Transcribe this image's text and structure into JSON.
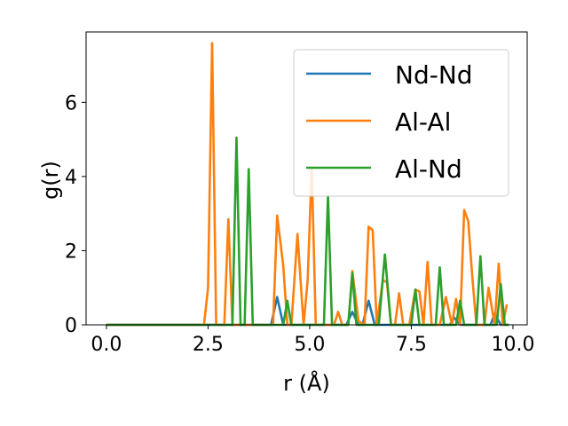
{
  "chart_data": {
    "type": "line",
    "xlabel": "r (Å)",
    "ylabel": "g(r)",
    "xlim": [
      -0.5,
      10.35
    ],
    "ylim": [
      0,
      7.9
    ],
    "xticks": [
      0.0,
      2.5,
      5.0,
      7.5,
      10.0
    ],
    "xtick_labels": [
      "0.0",
      "2.5",
      "5.0",
      "7.5",
      "10.0"
    ],
    "yticks": [
      0,
      2,
      4,
      6
    ],
    "ytick_labels": [
      "0",
      "2",
      "4",
      "6"
    ],
    "grid": false,
    "legend_position": "top-right",
    "series": [
      {
        "name": "Nd-Nd",
        "color": "#1f77b4",
        "x": [
          0.0,
          4.05,
          4.2,
          4.35,
          5.9,
          6.05,
          6.2,
          6.3,
          6.45,
          6.6,
          8.45,
          8.55,
          8.7,
          9.45,
          9.55,
          9.7,
          9.9
        ],
        "y": [
          0.0,
          0.0,
          0.75,
          0.0,
          0.0,
          0.35,
          0.0,
          0.0,
          0.65,
          0.0,
          0.0,
          0.2,
          0.0,
          0.0,
          0.3,
          0.0,
          0.0
        ]
      },
      {
        "name": "Al-Al",
        "color": "#ff7f0e",
        "x": [
          0.0,
          2.4,
          2.5,
          2.6,
          2.7,
          2.9,
          3.0,
          3.1,
          4.1,
          4.2,
          4.35,
          4.45,
          4.55,
          4.7,
          4.85,
          4.95,
          5.05,
          5.15,
          5.5,
          5.6,
          5.7,
          5.8,
          5.95,
          6.05,
          6.2,
          6.35,
          6.45,
          6.55,
          6.65,
          6.8,
          6.9,
          7.0,
          7.1,
          7.2,
          7.3,
          7.45,
          7.6,
          7.7,
          7.8,
          7.9,
          8.0,
          8.2,
          8.35,
          8.5,
          8.6,
          8.7,
          8.8,
          8.9,
          9.0,
          9.1,
          9.2,
          9.3,
          9.4,
          9.55,
          9.65,
          9.75,
          9.85
        ],
        "y": [
          0.0,
          0.0,
          1.0,
          7.6,
          0.0,
          0.0,
          2.85,
          0.0,
          0.0,
          2.95,
          1.6,
          0.0,
          0.0,
          2.45,
          0.0,
          1.2,
          4.25,
          0.0,
          0.0,
          0.0,
          0.35,
          0.0,
          0.0,
          1.45,
          0.1,
          0.0,
          2.65,
          2.55,
          0.0,
          1.2,
          1.15,
          0.0,
          0.0,
          0.85,
          0.0,
          0.0,
          0.95,
          0.9,
          0.0,
          1.7,
          0.0,
          0.0,
          0.75,
          0.0,
          0.7,
          0.0,
          3.1,
          2.8,
          1.3,
          0.0,
          0.0,
          0.0,
          1.0,
          0.0,
          1.65,
          0.0,
          0.55
        ]
      },
      {
        "name": "Al-Nd",
        "color": "#2ca02c",
        "x": [
          0.0,
          3.1,
          3.2,
          3.3,
          3.4,
          3.5,
          3.6,
          4.35,
          4.45,
          4.55,
          5.35,
          5.45,
          5.55,
          5.95,
          6.05,
          6.15,
          6.7,
          6.85,
          7.0,
          7.5,
          7.6,
          7.7,
          8.1,
          8.2,
          8.3,
          8.6,
          8.7,
          8.8,
          9.1,
          9.2,
          9.3,
          9.6,
          9.7,
          9.8,
          9.9
        ],
        "y": [
          0.0,
          0.0,
          5.05,
          0.0,
          0.0,
          4.2,
          0.0,
          0.0,
          0.65,
          0.0,
          0.0,
          3.5,
          0.0,
          0.0,
          1.4,
          0.0,
          0.0,
          1.9,
          0.0,
          0.0,
          0.95,
          0.0,
          0.0,
          1.55,
          0.0,
          0.0,
          0.65,
          0.0,
          0.0,
          1.85,
          0.0,
          0.0,
          1.1,
          0.0,
          0.0
        ]
      }
    ]
  }
}
